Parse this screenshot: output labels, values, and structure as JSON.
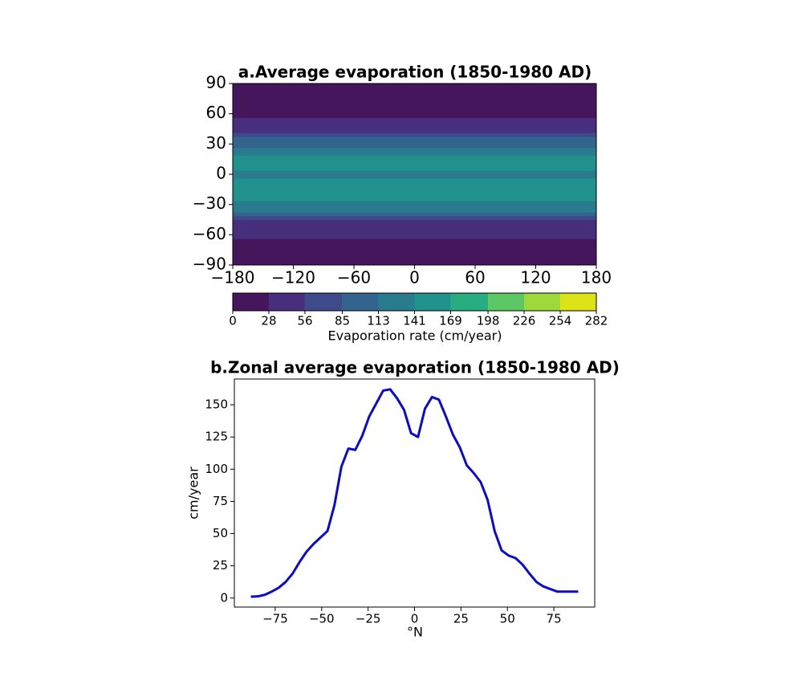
{
  "chart_data": [
    {
      "type": "map",
      "title": "a.Average evaporation (1850-1980 AD)",
      "xlim": [
        -180,
        180
      ],
      "ylim": [
        -90,
        90
      ],
      "xticks": [
        {
          "value": -180,
          "label": "−180"
        },
        {
          "value": -120,
          "label": "−120"
        },
        {
          "value": -60,
          "label": "−60"
        },
        0,
        60,
        120,
        180
      ],
      "yticks": [
        {
          "value": -90,
          "label": "−90"
        },
        {
          "value": -60,
          "label": "−60"
        },
        {
          "value": -30,
          "label": "−30"
        },
        0,
        30,
        60,
        90
      ],
      "colorbar_label": "Evaporation rate (cm/year)",
      "colorbar_ticks": [
        0,
        28,
        56,
        85,
        113,
        141,
        169,
        198,
        226,
        254,
        282
      ],
      "colors": [
        "#46165c",
        "#472f7d",
        "#3e4a89",
        "#32648e",
        "#297b8e",
        "#21918c",
        "#27ad81",
        "#5cc863",
        "#9dd93b",
        "#dde318"
      ]
    },
    {
      "type": "line",
      "title": "b.Zonal average evaporation (1850-1980 AD)",
      "xlabel": "°N",
      "ylabel": "cm/year",
      "x": [
        -88.125,
        -84.375,
        -80.625,
        -76.875,
        -73.125,
        -69.375,
        -65.625,
        -61.875,
        -58.125,
        -54.375,
        -50.625,
        -46.875,
        -43.125,
        -39.375,
        -35.625,
        -31.875,
        -28.125,
        -24.375,
        -20.625,
        -16.875,
        -13.125,
        -9.375,
        -5.625,
        -1.875,
        1.875,
        5.625,
        9.375,
        13.125,
        16.875,
        20.625,
        24.375,
        28.125,
        31.875,
        35.625,
        39.375,
        43.125,
        46.875,
        50.625,
        54.375,
        58.125,
        61.875,
        65.625,
        69.375,
        73.125,
        76.875,
        80.625,
        84.375,
        88.125
      ],
      "series": [
        {
          "color": "#0a0ad2",
          "values": [
            1,
            1.3,
            2.5,
            5,
            8,
            12.5,
            19,
            28,
            36,
            42,
            47,
            52,
            72,
            102,
            116,
            115,
            126,
            141,
            151,
            161,
            162,
            155,
            146,
            128,
            125,
            147,
            156,
            154,
            141,
            127,
            117,
            103,
            97,
            90,
            76,
            52,
            37,
            33,
            31,
            26,
            19,
            12.5,
            9,
            7,
            5,
            5,
            5,
            5
          ]
        }
      ],
      "xlim": [
        -97,
        97
      ],
      "ylim": [
        -7,
        170
      ],
      "xticks": [
        {
          "value": -75,
          "label": "−75"
        },
        {
          "value": -50,
          "label": "−50"
        },
        {
          "value": -25,
          "label": "−25"
        },
        0,
        25,
        50,
        75
      ],
      "yticks": [
        0,
        25,
        50,
        75,
        100,
        125,
        150
      ]
    }
  ]
}
